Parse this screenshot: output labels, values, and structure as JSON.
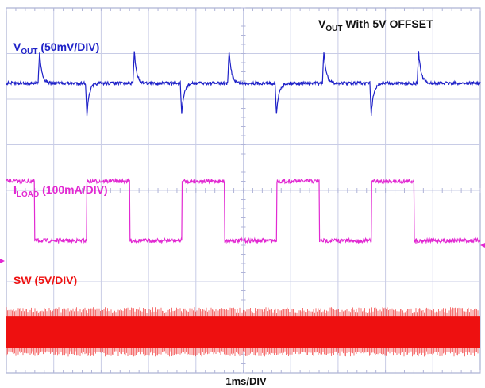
{
  "chart_data": {
    "type": "line",
    "title": {
      "prefix": "V",
      "sub": "OUT",
      "suffix": " With 5V OFFSET"
    },
    "xlabel": "1ms/DIV",
    "x_unit": "ms",
    "x_per_div": 1,
    "xlim": [
      0,
      10
    ],
    "grid": {
      "x_divisions": 10,
      "y_divisions": 8,
      "visible": true
    },
    "series": [
      {
        "name_main": "V",
        "name_sub": "OUT",
        "name_scale": " (50mV/DIV)",
        "color": "#1f22c8",
        "scale_per_div": 50,
        "unit": "mV",
        "baseline_div": 2.35,
        "positive_spikes_ms": [
          0.7,
          2.7,
          4.7,
          6.7,
          8.7
        ],
        "negative_spikes_ms": [
          1.7,
          3.7,
          5.7,
          7.7
        ],
        "spike_amplitude_div": 0.7
      },
      {
        "name_main": "I",
        "name_sub": "LOAD",
        "name_scale": " (100mA/DIV)",
        "color": "#e22ad2",
        "scale_per_div": 100,
        "unit": "mA",
        "high_div": 0.2,
        "low_div": -1.1,
        "high_intervals_ms": [
          [
            0,
            0.6
          ],
          [
            1.7,
            2.6
          ],
          [
            3.7,
            4.6
          ],
          [
            5.7,
            6.6
          ],
          [
            7.7,
            8.6
          ]
        ]
      },
      {
        "name_main": "SW",
        "name_sub": "",
        "name_scale": " (5V/DIV)",
        "color": "#ee1111",
        "scale_per_div": 5,
        "unit": "V",
        "band_div": [
          -3.45,
          -2.75
        ],
        "description": "dense switching band"
      }
    ]
  }
}
